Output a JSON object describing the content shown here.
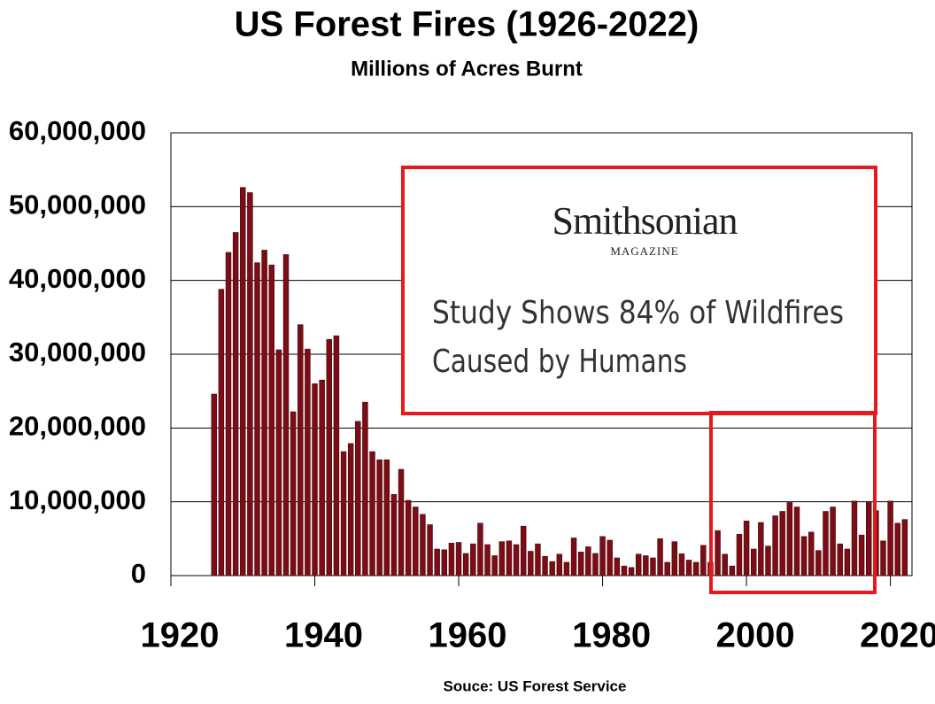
{
  "chart_data": {
    "type": "bar",
    "title": "US Forest Fires (1926-2022)",
    "subtitle": "Millions of Acres Burnt",
    "source": "Souce: US Forest Service",
    "annotation": {
      "brand": "Smithsonian",
      "brand_sub": "MAGAZINE",
      "headline": [
        "Study Shows 84% of Wildfires",
        "Caused by Humans"
      ]
    },
    "color": "#7b0d16",
    "grid": true,
    "xlim": [
      1920,
      2023
    ],
    "xticks": [
      1920,
      1940,
      1960,
      1980,
      2000,
      2020
    ],
    "ylim": [
      0,
      60000000
    ],
    "yticks": [
      0,
      {
        "value": 10000000,
        "label": "10,000,000"
      },
      {
        "value": 20000000,
        "label": "20,000,000"
      },
      {
        "value": 30000000,
        "label": "30,000,000"
      },
      {
        "value": 40000000,
        "label": "40,000,000"
      },
      {
        "value": 50000000,
        "label": "50,000,000"
      },
      {
        "value": 60000000,
        "label": "60,000,000"
      }
    ],
    "x": [
      1926,
      1927,
      1928,
      1929,
      1930,
      1931,
      1932,
      1933,
      1934,
      1935,
      1936,
      1937,
      1938,
      1939,
      1940,
      1941,
      1942,
      1943,
      1944,
      1945,
      1946,
      1947,
      1948,
      1949,
      1950,
      1951,
      1952,
      1953,
      1954,
      1955,
      1956,
      1957,
      1958,
      1959,
      1960,
      1961,
      1962,
      1963,
      1964,
      1965,
      1966,
      1967,
      1968,
      1969,
      1970,
      1971,
      1972,
      1973,
      1974,
      1975,
      1976,
      1977,
      1978,
      1979,
      1980,
      1981,
      1982,
      1983,
      1984,
      1985,
      1986,
      1987,
      1988,
      1989,
      1990,
      1991,
      1992,
      1993,
      1994,
      1995,
      1996,
      1997,
      1998,
      1999,
      2000,
      2001,
      2002,
      2003,
      2004,
      2005,
      2006,
      2007,
      2008,
      2009,
      2010,
      2011,
      2012,
      2013,
      2014,
      2015,
      2016,
      2017,
      2018,
      2019,
      2020,
      2021,
      2022
    ],
    "values": [
      24600000,
      38800000,
      43800000,
      46500000,
      52600000,
      51900000,
      42400000,
      44100000,
      42100000,
      30600000,
      43500000,
      22200000,
      34000000,
      30700000,
      26000000,
      26500000,
      32000000,
      32500000,
      16800000,
      17900000,
      20900000,
      23500000,
      16800000,
      15700000,
      15700000,
      11000000,
      14400000,
      10200000,
      9300000,
      8300000,
      6900000,
      3600000,
      3500000,
      4400000,
      4500000,
      3000000,
      4300000,
      7100000,
      4200000,
      2700000,
      4600000,
      4700000,
      4200000,
      6700000,
      3300000,
      4300000,
      2600000,
      1900000,
      2900000,
      1800000,
      5100000,
      3200000,
      3900000,
      3000000,
      5300000,
      4800000,
      2400000,
      1300000,
      1100000,
      2900000,
      2700000,
      2400000,
      5000000,
      1800000,
      4600000,
      2950000,
      2100000,
      1800000,
      4100000,
      1800000,
      6100000,
      2900000,
      1300000,
      5600000,
      7400000,
      3600000,
      7200000,
      4000000,
      8100000,
      8700000,
      9900000,
      9300000,
      5300000,
      5900000,
      3400000,
      8700000,
      9300000,
      4300000,
      3600000,
      10100000,
      5500000,
      10000000,
      8800000,
      4700000,
      10100000,
      7100000,
      7600000
    ]
  }
}
